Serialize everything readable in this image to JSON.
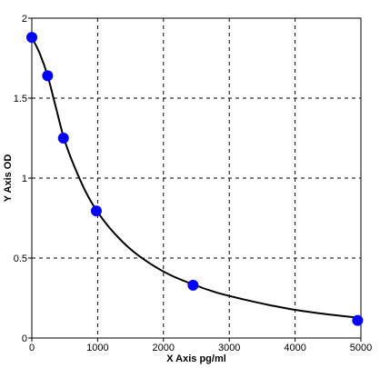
{
  "chart_data": {
    "type": "scatter",
    "title": "",
    "xlabel": "X  Axis pg/ml",
    "ylabel": "Y  Axis OD",
    "xlim": [
      0,
      5000
    ],
    "ylim": [
      0,
      2
    ],
    "grid": true,
    "x_ticks": [
      0,
      1000,
      2000,
      3000,
      4000,
      5000
    ],
    "y_ticks": [
      0,
      0.5,
      1,
      1.5,
      2
    ],
    "x_tick_labels": [
      "0",
      "1000",
      "2000",
      "3000",
      "4000",
      "5000"
    ],
    "y_tick_labels": [
      "0",
      "0.5",
      "1",
      "1.5",
      "2"
    ],
    "points": [
      {
        "x": 0,
        "y": 1.88
      },
      {
        "x": 240,
        "y": 1.64
      },
      {
        "x": 480,
        "y": 1.25
      },
      {
        "x": 980,
        "y": 0.795
      },
      {
        "x": 2450,
        "y": 0.33
      },
      {
        "x": 4950,
        "y": 0.11
      }
    ],
    "fit_curve": [
      {
        "x": 0,
        "y": 1.88
      },
      {
        "x": 120,
        "y": 1.78
      },
      {
        "x": 240,
        "y": 1.64
      },
      {
        "x": 360,
        "y": 1.45
      },
      {
        "x": 480,
        "y": 1.26
      },
      {
        "x": 600,
        "y": 1.12
      },
      {
        "x": 800,
        "y": 0.93
      },
      {
        "x": 980,
        "y": 0.8
      },
      {
        "x": 1200,
        "y": 0.68
      },
      {
        "x": 1500,
        "y": 0.555
      },
      {
        "x": 1800,
        "y": 0.465
      },
      {
        "x": 2100,
        "y": 0.395
      },
      {
        "x": 2450,
        "y": 0.335
      },
      {
        "x": 2800,
        "y": 0.285
      },
      {
        "x": 3200,
        "y": 0.243
      },
      {
        "x": 3600,
        "y": 0.207
      },
      {
        "x": 4000,
        "y": 0.176
      },
      {
        "x": 4500,
        "y": 0.148
      },
      {
        "x": 5000,
        "y": 0.125
      }
    ],
    "colors": {
      "point": "#0000ff",
      "curve": "#000000",
      "grid": "#000000",
      "frame": "#000000"
    }
  }
}
